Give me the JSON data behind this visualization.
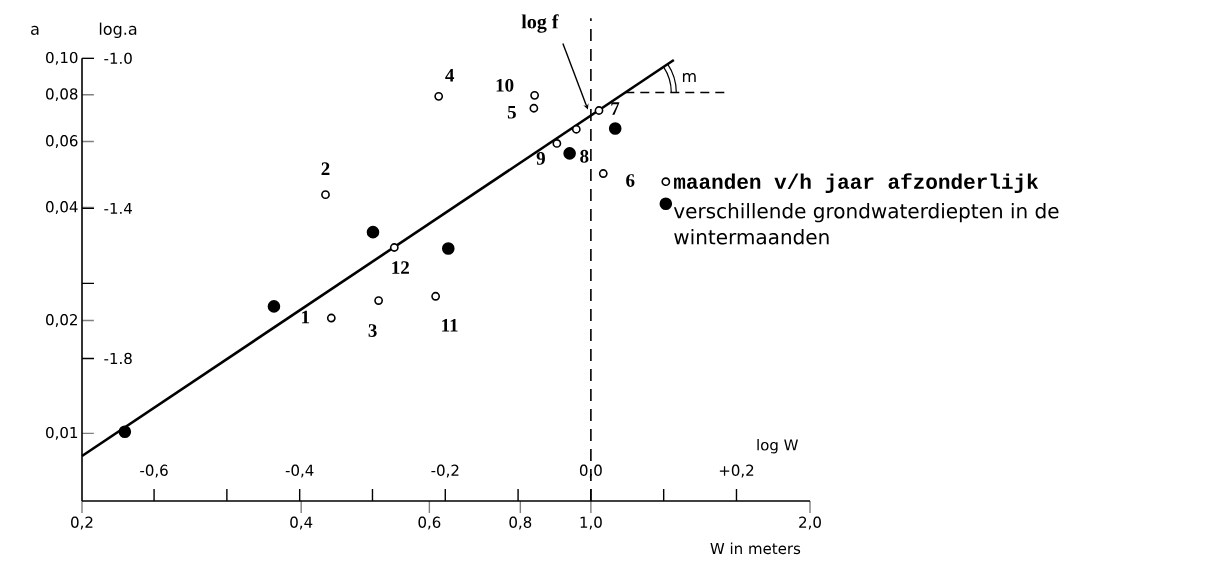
{
  "chart_data": {
    "type": "scatter",
    "log": "xy",
    "xlabel": "W in meters",
    "ylabel": "a",
    "x2label": "log W",
    "y2label": "log.a",
    "xlim": [
      0.2,
      2.0
    ],
    "ylim": [
      0.0066,
      0.1
    ],
    "xticks": [
      {
        "value": 0.2,
        "label": "0,2"
      },
      {
        "value": 0.4,
        "label": "0,4"
      },
      {
        "value": 0.6,
        "label": "0,6"
      },
      {
        "value": 0.8,
        "label": "0,8"
      },
      {
        "value": 1.0,
        "label": "1,0"
      },
      {
        "value": 2.0,
        "label": "2,0"
      }
    ],
    "yticks": [
      {
        "value": 0.01,
        "label": "0,01"
      },
      {
        "value": 0.02,
        "label": "0,02"
      },
      {
        "value": 0.04,
        "label": "0,04"
      },
      {
        "value": 0.06,
        "label": "0,06"
      },
      {
        "value": 0.08,
        "label": "0,08"
      },
      {
        "value": 0.1,
        "label": "0,10"
      }
    ],
    "x2lim": [
      -0.699,
      0.301
    ],
    "x2ticks": [
      {
        "value": -0.6,
        "label": "-0,6"
      },
      {
        "value": -0.5,
        "label": null
      },
      {
        "value": -0.4,
        "label": "-0,4"
      },
      {
        "value": -0.3,
        "label": null
      },
      {
        "value": -0.2,
        "label": "-0,2"
      },
      {
        "value": -0.1,
        "label": null
      },
      {
        "value": 0.0,
        "label": "0,0"
      },
      {
        "value": 0.1,
        "label": null
      },
      {
        "value": 0.2,
        "label": "+0,2"
      }
    ],
    "y2lim": [
      -2.18,
      -1.0
    ],
    "y2ticks": [
      {
        "value": -1.0,
        "label": "-1.0"
      },
      {
        "value": -1.4,
        "label": "-1.4"
      },
      {
        "value": -1.6,
        "label": null
      },
      {
        "value": -1.8,
        "label": "-1.8"
      }
    ],
    "legend": "right",
    "ref_lines": [
      {
        "axis": "x",
        "value": 1.0,
        "line_style": "dashed",
        "color": "#000000"
      }
    ],
    "series": [
      {
        "name": "maanden v/h jaar afzonderlijk",
        "marker": "circle",
        "color": "#000000",
        "x": [
          0.44,
          0.432,
          0.511,
          0.618,
          0.835,
          1.04,
          1.026,
          0.955,
          0.898,
          0.837,
          0.612,
          0.537
        ],
        "values": [
          0.0203,
          0.0433,
          0.0226,
          0.0792,
          0.0736,
          0.0493,
          0.0726,
          0.0647,
          0.0593,
          0.0797,
          0.0232,
          0.0313
        ]
      },
      {
        "name": "verschillende grondwaterdiepten in de wintermaanden",
        "marker": "circle",
        "color": "#000000",
        "x": [
          0.229,
          0.367,
          0.502,
          0.637,
          0.935,
          1.08
        ],
        "values": [
          0.0101,
          0.0218,
          0.0344,
          0.0311,
          0.0558,
          0.065
        ]
      },
      {
        "type": "line",
        "marker": "none",
        "line_style": "solid",
        "color": "#000000",
        "x": [
          0.2,
          1.3
        ],
        "values": [
          0.0087,
          0.099
        ]
      }
    ],
    "annotations": [
      {
        "text": "1",
        "x": 0.44,
        "y": 0.0203
      },
      {
        "text": "2",
        "x": 0.432,
        "y": 0.0433
      },
      {
        "text": "3",
        "x": 0.511,
        "y": 0.0226
      },
      {
        "text": "4",
        "x": 0.618,
        "y": 0.0792
      },
      {
        "text": "5",
        "x": 0.835,
        "y": 0.0736
      },
      {
        "text": "6",
        "x": 1.04,
        "y": 0.0493
      },
      {
        "text": "7",
        "x": 1.026,
        "y": 0.0726
      },
      {
        "text": "8",
        "x": 0.955,
        "y": 0.0647
      },
      {
        "text": "9",
        "x": 0.898,
        "y": 0.0593
      },
      {
        "text": "10",
        "x": 0.837,
        "y": 0.0797
      },
      {
        "text": "11",
        "x": 0.612,
        "y": 0.0232
      },
      {
        "text": "12",
        "x": 0.537,
        "y": 0.0313
      },
      "log f",
      "m"
    ]
  }
}
